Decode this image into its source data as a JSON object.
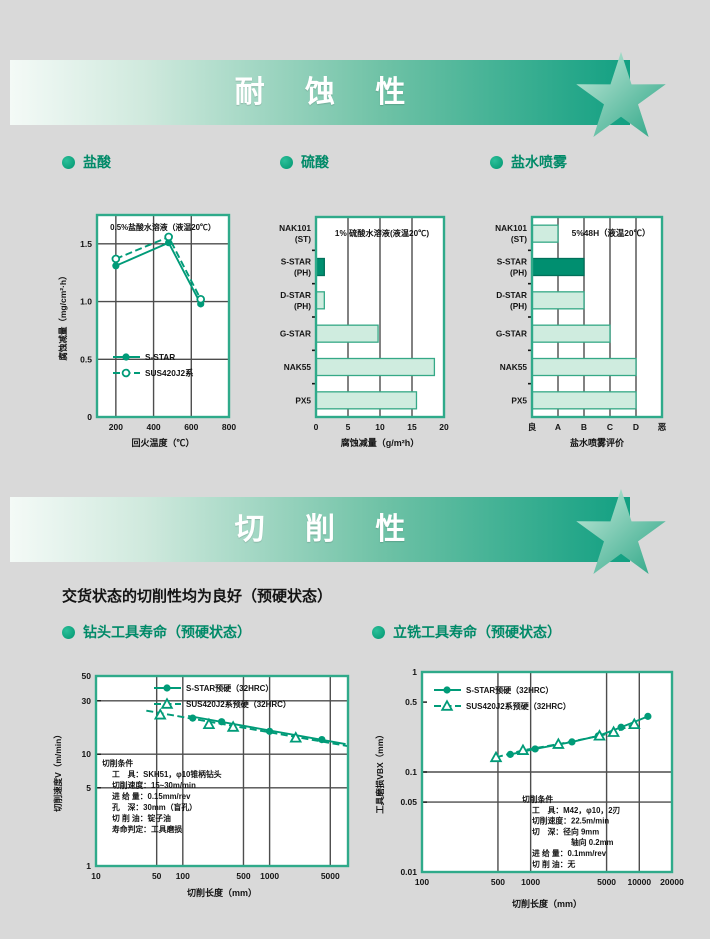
{
  "colors": {
    "page_bg": "#d9d9d9",
    "banner_green": "#12a082",
    "accent_green": "#009b78",
    "chart_border": "#2faa8a",
    "grid": "#4d4d4d",
    "bar_fill": "#cfecdf",
    "bar_stroke": "#35a987",
    "bar_highlight": "#008f70",
    "bar_highlight_stroke": "#00705a",
    "bullet_green": "#00a07c",
    "bullet_text": "#008a68"
  },
  "corrosion": {
    "banner_title": "耐 蚀 性",
    "bullets": [
      "盐酸",
      "硫酸",
      "盐水喷雾"
    ]
  },
  "machinability": {
    "banner_title": "切 削 性",
    "note": "交货状态的切削性均为良好（预硬状态）",
    "bullets": [
      "钻头工具寿命（预硬状态）",
      "立铣工具寿命（预硬状态）"
    ]
  },
  "chart_data": [
    {
      "id": "hydrochloric-acid",
      "type": "line",
      "title": "0.5%盐酸水溶液（液温20℃）",
      "xlabel": "回火温度（℃）",
      "ylabel": "腐蚀减量（mg/cm²·h）",
      "xlim": [
        100,
        800
      ],
      "ylim": [
        0,
        1.75
      ],
      "xticks": [
        200,
        400,
        600,
        800
      ],
      "yticks": [
        0,
        0.5,
        1.0,
        1.5
      ],
      "ytick_labels": [
        "0",
        "0.5",
        "1.0",
        "1.5"
      ],
      "xgrid": [
        200,
        400,
        600
      ],
      "ygrid": [
        0.5,
        1.0,
        1.5
      ],
      "legend_position": "inside-bottom-left",
      "series": [
        {
          "name": "S-STAR",
          "marker": "circle-filled",
          "dash": false,
          "x": [
            200,
            480,
            650
          ],
          "y": [
            1.31,
            1.51,
            0.98
          ]
        },
        {
          "name": "SUS420J2系",
          "marker": "circle-open",
          "dash": true,
          "x": [
            200,
            480,
            650
          ],
          "y": [
            1.37,
            1.56,
            1.02
          ]
        }
      ]
    },
    {
      "id": "sulfuric-acid",
      "type": "bar",
      "title": "1% 硫酸水溶液(液温20℃)",
      "xlabel": "腐蚀减量（g/m²h）",
      "categories": [
        "NAK101|(ST)",
        "S-STAR|(PH)",
        "D-STAR|(PH)",
        "G-STAR",
        "NAK55",
        "PX5"
      ],
      "values": [
        0,
        1.3,
        1.3,
        9.7,
        18.5,
        15.7
      ],
      "highlight_index": 1,
      "xlim": [
        0,
        20
      ],
      "xticks": [
        0,
        5,
        10,
        15,
        20
      ],
      "xgrid": [
        5,
        10,
        15
      ]
    },
    {
      "id": "salt-spray",
      "type": "bar",
      "title": "5%48H（液温20℃）",
      "xlabel": "盐水喷雾评价",
      "categories": [
        "NAK101|(ST)",
        "S-STAR|(PH)",
        "D-STAR|(PH)",
        "G-STAR",
        "NAK55",
        "PX5"
      ],
      "values": [
        1,
        2,
        2,
        3,
        4,
        4
      ],
      "highlight_index": 1,
      "xlim": [
        0,
        5
      ],
      "xticks": [
        0,
        1,
        2,
        3,
        4,
        5
      ],
      "xtick_labels": [
        "良",
        "A",
        "B",
        "C",
        "D",
        "恶"
      ],
      "xgrid": [
        1,
        2,
        3,
        4
      ]
    },
    {
      "id": "drill-tool-life",
      "type": "line",
      "xlog": true,
      "ylog": true,
      "xlabel": "切削长度（mm）",
      "ylabel": "切削速度V（m/min）",
      "xlim": [
        10,
        8000
      ],
      "ylim": [
        1,
        50
      ],
      "xticks": [
        10,
        50,
        100,
        500,
        1000,
        5000
      ],
      "xtick_labels": [
        "10",
        "50",
        "100",
        "500",
        "1000",
        "5000"
      ],
      "yticks": [
        1,
        5,
        10,
        30,
        50
      ],
      "ytick_labels": [
        "1",
        "5",
        "10",
        "30",
        "50"
      ],
      "xgrid": [
        50,
        100,
        500,
        1000,
        5000
      ],
      "ygrid": [
        5,
        10,
        30
      ],
      "legend_position": "inside-top-right",
      "series": [
        {
          "name": "S-STAR预硬（32HRC）",
          "marker": "circle-filled",
          "dash": false,
          "x": [
            130,
            280,
            1000,
            4000
          ],
          "y": [
            21,
            19.5,
            16,
            13.5
          ],
          "line": [
            [
              115,
              22
            ],
            [
              7500,
              12.3
            ]
          ]
        },
        {
          "name": "SUS420J2系预硬（32HRC）",
          "marker": "triangle-open",
          "dash": true,
          "x": [
            55,
            200,
            380,
            2000
          ],
          "y": [
            22.5,
            18.5,
            17.5,
            14
          ],
          "line": [
            [
              38,
              24.5
            ],
            [
              8000,
              11.8
            ]
          ]
        }
      ],
      "conditions": [
        "切削条件",
        "工　具：SKH51，φ10锥柄钻头",
        "切削速度：15~30m/min",
        "进 给 量：0.15mm/rev",
        "孔　深：30mm（盲孔）",
        "切 削 油：锭子油",
        "寿命判定：工具磨损"
      ]
    },
    {
      "id": "end-mill-tool-life",
      "type": "line",
      "xlog": true,
      "ylog": true,
      "xlabel": "切削长度（mm）",
      "ylabel": "工具磨损VBX（mm）",
      "xlim": [
        100,
        20000
      ],
      "ylim": [
        0.01,
        1
      ],
      "xticks": [
        100,
        500,
        1000,
        5000,
        10000,
        20000
      ],
      "xtick_labels": [
        "100",
        "500",
        "1000",
        "5000",
        "10000",
        "20000"
      ],
      "yticks": [
        0.01,
        0.05,
        0.1,
        0.5,
        1
      ],
      "ytick_labels": [
        "0.01",
        "0.05",
        "0.1",
        "0.5",
        "1"
      ],
      "xgrid": [
        500,
        1000,
        5000,
        10000
      ],
      "ygrid": [
        0.05,
        0.1
      ],
      "legend_position": "inside-top-left",
      "series": [
        {
          "name": "S-STAR预硬（32HRC）",
          "marker": "circle-filled",
          "dash": false,
          "x": [
            650,
            1100,
            2400,
            4200,
            6800,
            12000
          ],
          "y": [
            0.15,
            0.17,
            0.2,
            0.23,
            0.28,
            0.36
          ]
        },
        {
          "name": "SUS420J2系预硬（32HRC）",
          "marker": "triangle-open",
          "dash": true,
          "x": [
            480,
            850,
            1800,
            4300,
            5800,
            9000
          ],
          "y": [
            0.14,
            0.165,
            0.19,
            0.23,
            0.25,
            0.3
          ]
        }
      ],
      "conditions": [
        "切削条件",
        "工　具：M42，φ10，2刃",
        "切削速度：22.5m/min",
        "切　深：径向 9mm",
        "　　　　　轴向 0.2mm",
        "进 给 量：0.1mm/rev",
        "切 削 油：无"
      ]
    }
  ]
}
